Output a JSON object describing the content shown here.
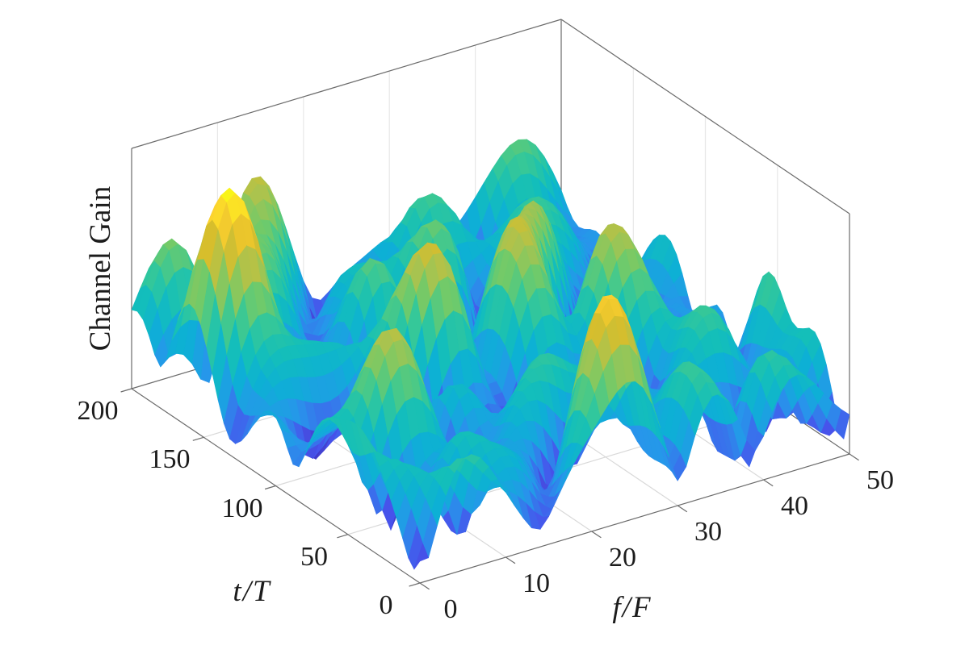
{
  "page": {
    "background": "#ffffff"
  },
  "chart_data": {
    "type": "surface",
    "title": "",
    "xlabel": "f/F",
    "ylabel": "t/T",
    "zlabel": "Channel Gain",
    "x": {
      "label": "f/F",
      "range": [
        0,
        50
      ],
      "ticks": [
        0,
        10,
        20,
        30,
        40,
        50
      ]
    },
    "y": {
      "label": "t/T",
      "range": [
        0,
        200
      ],
      "ticks": [
        0,
        50,
        100,
        150,
        200
      ]
    },
    "z": {
      "label": "Channel Gain",
      "range": [
        0,
        1
      ],
      "ticks": []
    },
    "view": {
      "azimuth": -37.5,
      "elevation": 30,
      "projection": "orthographic",
      "grid": "on",
      "box": "on"
    },
    "grid_resolution": {
      "n_t": 51,
      "n_f": 51
    },
    "colormap": {
      "name": "parula",
      "stops": [
        [
          0.0,
          "#3E26A8"
        ],
        [
          0.1,
          "#4754EC"
        ],
        [
          0.2,
          "#2796EB"
        ],
        [
          0.3,
          "#0DB0D5"
        ],
        [
          0.4,
          "#14BFB9"
        ],
        [
          0.5,
          "#37C897"
        ],
        [
          0.6,
          "#71CA69"
        ],
        [
          0.7,
          "#ABC34E"
        ],
        [
          0.8,
          "#DCBD29"
        ],
        [
          0.9,
          "#FCD030"
        ],
        [
          1.0,
          "#F9FB15"
        ]
      ]
    },
    "surface_model": {
      "kind": "rayleigh-fading-sum-of-sinusoids",
      "description": "Channel gain magnitude |H(t,f)| = |sum_k a_k * exp(j*(2*pi*(kt_k*t/200 + kf_k*f/50) + phi_k))|, normalized to [0,1]",
      "components": [
        [
          1.0,
          1.25,
          0.45,
          0.0
        ],
        [
          0.95,
          -0.65,
          1.85,
          2.3
        ],
        [
          0.92,
          2.15,
          -1.15,
          4.1
        ],
        [
          0.88,
          -1.55,
          -2.25,
          1.6
        ],
        [
          0.84,
          3.05,
          1.55,
          3.2
        ],
        [
          0.8,
          0.35,
          -2.95,
          5.5
        ],
        [
          0.76,
          -2.7,
          2.6,
          0.8
        ],
        [
          0.72,
          1.85,
          3.15,
          2.8
        ],
        [
          0.68,
          -3.3,
          -0.6,
          4.7
        ],
        [
          0.64,
          2.9,
          -2.7,
          1.1
        ],
        [
          0.6,
          -1.1,
          3.4,
          3.8
        ],
        [
          0.56,
          0.8,
          -1.7,
          5.0
        ],
        [
          0.52,
          3.45,
          0.95,
          2.0
        ],
        [
          0.48,
          -2.2,
          -3.3,
          0.4
        ]
      ]
    },
    "colors": {
      "axis_line": "#6b6b6b",
      "floor_grid": "#d9d9d9",
      "wall_grid": "#e7e7e7",
      "text": "#1c1c1c",
      "background": "#ffffff"
    }
  }
}
